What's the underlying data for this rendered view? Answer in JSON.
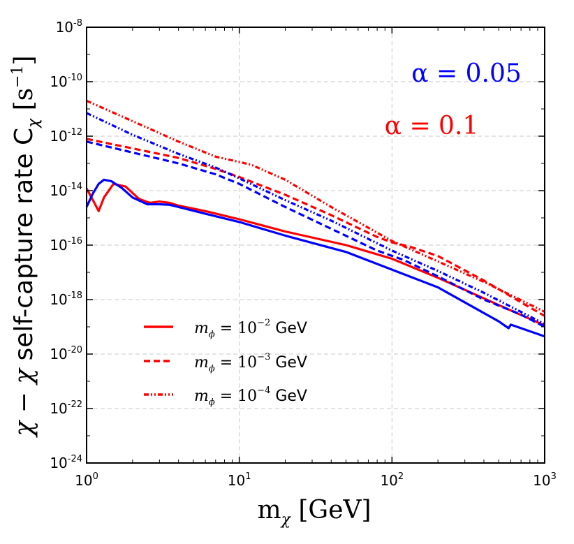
{
  "chart_data": {
    "type": "line",
    "xscale": "log",
    "yscale": "log",
    "xlim": [
      1,
      1000
    ],
    "ylim": [
      1e-24,
      1e-08
    ],
    "xticks": [
      {
        "base": "10",
        "exp": "0"
      },
      {
        "base": "10",
        "exp": "1"
      },
      {
        "base": "10",
        "exp": "2"
      },
      {
        "base": "10",
        "exp": "3"
      }
    ],
    "yticks": [
      {
        "base": "10",
        "exp": "-8"
      },
      {
        "base": "10",
        "exp": "-10"
      },
      {
        "base": "10",
        "exp": "-12"
      },
      {
        "base": "10",
        "exp": "-14"
      },
      {
        "base": "10",
        "exp": "-16"
      },
      {
        "base": "10",
        "exp": "-18"
      },
      {
        "base": "10",
        "exp": "-20"
      },
      {
        "base": "10",
        "exp": "-22"
      },
      {
        "base": "10",
        "exp": "-24"
      }
    ],
    "xlabel": {
      "main": "m",
      "sub": "χ",
      "unit": "[GeV]"
    },
    "ylabel": {
      "prefix": "χ − χ",
      "text": "self-capture rate C",
      "sub": "χ",
      "unit": "[s",
      "unit_exp": "−1",
      "unit_close": "]"
    },
    "grid": true,
    "annotations": [
      {
        "text": "α = 0.05",
        "color": "#0000ff"
      },
      {
        "text": "α = 0.1",
        "color": "#ff0000"
      }
    ],
    "legend": {
      "placement": "lower-left",
      "entries": [
        {
          "prefix": "m",
          "sub": "ϕ",
          "eq": " = 10",
          "exp": "−2",
          "unit": "GeV",
          "style": "solid",
          "color": "#ff0000"
        },
        {
          "prefix": "m",
          "sub": "ϕ",
          "eq": " = 10",
          "exp": "−3",
          "unit": "GeV",
          "style": "dashed",
          "color": "#ff0000"
        },
        {
          "prefix": "m",
          "sub": "ϕ",
          "eq": " = 10",
          "exp": "−4",
          "unit": "GeV",
          "style": "dashdotdot",
          "color": "#ff0000"
        }
      ]
    },
    "series": [
      {
        "name": "m_phi=1e-2, alpha=0.1",
        "color": "#ff0000",
        "style": "solid",
        "x": [
          1.0,
          1.1,
          1.2,
          1.3,
          1.5,
          1.8,
          2.2,
          2.6,
          3.0,
          3.5,
          4,
          6,
          10,
          20,
          50,
          100,
          200,
          500,
          1000
        ],
        "y": [
          -13.92,
          -14.35,
          -14.75,
          -14.25,
          -13.75,
          -13.85,
          -14.3,
          -14.45,
          -14.4,
          -14.45,
          -14.55,
          -14.75,
          -15.05,
          -15.5,
          -16.0,
          -16.5,
          -17.2,
          -18.2,
          -18.95
        ]
      },
      {
        "name": "m_phi=1e-2, alpha=0.05",
        "color": "#0000ff",
        "style": "solid",
        "x": [
          1.0,
          1.1,
          1.2,
          1.3,
          1.45,
          1.7,
          2.0,
          2.5,
          3.0,
          3.5,
          4,
          6,
          10,
          20,
          50,
          100,
          200,
          500,
          580,
          600,
          1000
        ],
        "y": [
          -14.6,
          -14.1,
          -13.75,
          -13.6,
          -13.65,
          -13.9,
          -14.25,
          -14.5,
          -14.5,
          -14.52,
          -14.6,
          -14.85,
          -15.15,
          -15.65,
          -16.25,
          -16.9,
          -17.55,
          -18.8,
          -19.05,
          -18.92,
          -19.35
        ]
      },
      {
        "name": "m_phi=1e-3, alpha=0.1",
        "color": "#ff0000",
        "style": "dashed",
        "x": [
          1,
          2,
          4,
          7,
          10,
          20,
          40,
          80,
          100,
          130,
          200,
          400,
          700,
          1000
        ],
        "y": [
          -12.1,
          -12.45,
          -12.8,
          -13.2,
          -13.5,
          -14.15,
          -14.9,
          -15.7,
          -15.9,
          -16.05,
          -16.4,
          -17.3,
          -18.1,
          -18.6
        ]
      },
      {
        "name": "m_phi=1e-3, alpha=0.05",
        "color": "#0000ff",
        "style": "dashed",
        "x": [
          1,
          2,
          4,
          7,
          10,
          20,
          40,
          80,
          120,
          200,
          400,
          700,
          1000
        ],
        "y": [
          -12.2,
          -12.6,
          -13.0,
          -13.4,
          -13.75,
          -14.6,
          -15.4,
          -16.2,
          -16.55,
          -17.15,
          -18.0,
          -18.55,
          -19.0
        ]
      },
      {
        "name": "m_phi=1e-4, alpha=0.1",
        "color": "#ff0000",
        "style": "dashdotdot",
        "x": [
          1,
          2,
          4,
          7,
          10,
          12,
          20,
          40,
          100,
          200,
          400,
          1000
        ],
        "y": [
          -10.7,
          -11.45,
          -12.2,
          -12.75,
          -12.95,
          -13.05,
          -13.6,
          -14.6,
          -15.85,
          -16.6,
          -17.35,
          -18.45
        ]
      },
      {
        "name": "m_phi=1e-4, alpha=0.05",
        "color": "#0000ff",
        "style": "dashdotdot",
        "x": [
          1,
          2,
          4,
          7,
          10,
          20,
          40,
          100,
          200,
          400,
          1000
        ],
        "y": [
          -11.15,
          -11.95,
          -12.65,
          -13.15,
          -13.55,
          -14.35,
          -15.1,
          -16.2,
          -16.95,
          -17.75,
          -18.9
        ]
      }
    ]
  }
}
